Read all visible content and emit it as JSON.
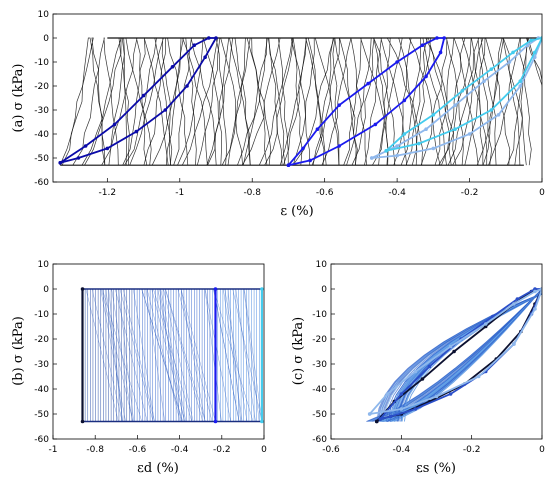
{
  "chart_data": [
    {
      "id": "a",
      "type": "line",
      "ylabel": "(a) σ (kPa)",
      "xlabel": "ε (%)",
      "xlim": [
        -1.35,
        0
      ],
      "ylim": [
        -60,
        10
      ],
      "xticks": [
        -1.2,
        -1,
        -0.8,
        -0.6,
        -0.4,
        -0.2,
        0
      ],
      "xtick_labels": [
        "-1.2",
        "-1",
        "-0.8",
        "-0.6",
        "-0.4",
        "-0.2",
        "0"
      ],
      "yticks": [
        10,
        0,
        -10,
        -20,
        -30,
        -40,
        -50,
        -60
      ],
      "ytick_labels": [
        "10",
        "0",
        "-10",
        "-20",
        "-30",
        "-40",
        "-50",
        "-60"
      ],
      "grid": false,
      "legend": "none",
      "series": [
        {
          "color": "#0a0aa8",
          "x": [
            -1.33,
            -1.26,
            -1.18,
            -1.1,
            -1.02,
            -0.96,
            -0.92,
            -0.9,
            -0.93,
            -0.98,
            -1.04,
            -1.12,
            -1.2,
            -1.28,
            -1.33
          ],
          "y": [
            -52,
            -45,
            -36,
            -24,
            -12,
            -3,
            0,
            0,
            -8,
            -20,
            -30,
            -39,
            -46,
            -50,
            -52
          ]
        },
        {
          "color": "#1a1aee",
          "x": [
            -0.7,
            -0.66,
            -0.62,
            -0.56,
            -0.48,
            -0.4,
            -0.33,
            -0.29,
            -0.27,
            -0.28,
            -0.32,
            -0.38,
            -0.46,
            -0.56,
            -0.64,
            -0.7
          ],
          "y": [
            -53,
            -46,
            -38,
            -28,
            -19,
            -10,
            -3,
            0,
            0,
            -6,
            -16,
            -26,
            -36,
            -45,
            -51,
            -53
          ]
        },
        {
          "color": "#8fb8ec",
          "x": [
            -0.47,
            -0.4,
            -0.32,
            -0.24,
            -0.16,
            -0.09,
            -0.04,
            -0.01,
            0.0,
            -0.02,
            -0.06,
            -0.12,
            -0.2,
            -0.3,
            -0.4,
            -0.47
          ],
          "y": [
            -50,
            -45,
            -38,
            -28,
            -18,
            -10,
            -3,
            0,
            0,
            -8,
            -20,
            -32,
            -40,
            -46,
            -49,
            -50
          ]
        },
        {
          "color": "#44ccee",
          "x": [
            -0.43,
            -0.38,
            -0.3,
            -0.22,
            -0.14,
            -0.08,
            -0.03,
            0.0,
            -0.02,
            -0.06,
            -0.14,
            -0.24,
            -0.34,
            -0.43
          ],
          "y": [
            -47,
            -40,
            -32,
            -22,
            -13,
            -6,
            -1,
            0,
            -6,
            -18,
            -30,
            -38,
            -44,
            -47
          ]
        }
      ]
    },
    {
      "id": "b",
      "type": "line",
      "ylabel": "(b) σ (kPa)",
      "xlabel": "εd (%)",
      "xlim": [
        -1,
        0
      ],
      "ylim": [
        -60,
        10
      ],
      "xticks": [
        -1,
        -0.8,
        -0.6,
        -0.4,
        -0.2,
        0
      ],
      "xtick_labels": [
        "-1",
        "-0.8",
        "-0.6",
        "-0.4",
        "-0.2",
        "0"
      ],
      "yticks": [
        10,
        0,
        -10,
        -20,
        -30,
        -40,
        -50,
        -60
      ],
      "ytick_labels": [
        "10",
        "0",
        "-10",
        "-20",
        "-30",
        "-40",
        "-50",
        "-60"
      ],
      "grid": false,
      "legend": "none",
      "series": [
        {
          "color": "#0b1030",
          "x": [
            -0.86,
            -0.86
          ],
          "y": [
            0,
            -53
          ]
        },
        {
          "color": "#1a1aee",
          "x": [
            -0.23,
            -0.23
          ],
          "y": [
            0,
            -53
          ]
        },
        {
          "color": "#44ccee",
          "x": [
            -0.01,
            -0.01
          ],
          "y": [
            0,
            -53
          ]
        }
      ]
    },
    {
      "id": "c",
      "type": "line",
      "ylabel": "(c) σ (kPa)",
      "xlabel": "εs (%)",
      "xlim": [
        -0.6,
        0
      ],
      "ylim": [
        -60,
        10
      ],
      "xticks": [
        -0.6,
        -0.4,
        -0.2,
        0
      ],
      "xtick_labels": [
        "-0.6",
        "-0.4",
        "-0.2",
        "0"
      ],
      "yticks": [
        10,
        0,
        -10,
        -20,
        -30,
        -40,
        -50,
        -60
      ],
      "ytick_labels": [
        "10",
        "0",
        "-10",
        "-20",
        "-30",
        "-40",
        "-50",
        "-60"
      ],
      "grid": false,
      "legend": "none",
      "series": [
        {
          "color": "#0b1030",
          "x": [
            -0.47,
            -0.42,
            -0.34,
            -0.25,
            -0.16,
            -0.08,
            -0.03,
            0.0,
            -0.02,
            -0.06,
            -0.13,
            -0.22,
            -0.32,
            -0.4,
            -0.46,
            -0.47
          ],
          "y": [
            -53,
            -45,
            -36,
            -25,
            -15,
            -6,
            -1,
            0,
            -6,
            -17,
            -28,
            -38,
            -45,
            -50,
            -52,
            -53
          ]
        },
        {
          "color": "#2a4ec8",
          "x": [
            -0.46,
            -0.4,
            -0.32,
            -0.23,
            -0.14,
            -0.07,
            -0.02,
            0.0,
            -0.03,
            -0.08,
            -0.16,
            -0.26,
            -0.36,
            -0.43,
            -0.46
          ],
          "y": [
            -52,
            -42,
            -31,
            -20,
            -11,
            -4,
            0,
            0,
            -10,
            -22,
            -33,
            -42,
            -48,
            -51,
            -52
          ]
        },
        {
          "color": "#8fb8ec",
          "x": [
            -0.49,
            -0.44,
            -0.36,
            -0.26,
            -0.16,
            -0.08,
            -0.02,
            0.0,
            -0.02,
            -0.08,
            -0.18,
            -0.3,
            -0.4,
            -0.49
          ],
          "y": [
            -50,
            -42,
            -33,
            -23,
            -14,
            -6,
            -1,
            0,
            -8,
            -22,
            -35,
            -43,
            -48,
            -50
          ]
        }
      ]
    }
  ]
}
